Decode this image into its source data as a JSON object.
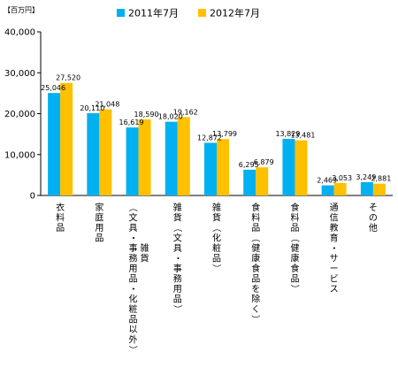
{
  "chart_data": {
    "type": "bar",
    "unit_label": "【百万円】",
    "title": "",
    "xlabel": "",
    "ylabel": "",
    "ylim": [
      0,
      40000
    ],
    "yticks": [
      0,
      10000,
      20000,
      30000,
      40000
    ],
    "ytick_labels": [
      "0",
      "10,000",
      "20,000",
      "30,000",
      "40,000"
    ],
    "grid": false,
    "legend_position": "top-center",
    "categories": [
      "衣料品",
      "家庭用品",
      "雑貨（文具・事務用品・化粧品以外）",
      "雑貨（文具・事務用品）",
      "雑貨（化粧品）",
      "食料品（健康食品を除く）",
      "食料品（健康食品）",
      "通信教育・サービス",
      "その他"
    ],
    "series": [
      {
        "name": "2011年7月",
        "color": "#00B0F0",
        "values": [
          25046,
          20110,
          16619,
          18020,
          12872,
          6295,
          13829,
          2469,
          3249
        ],
        "labels": [
          "25,046",
          "20,110",
          "16,619",
          "18,020",
          "12,872",
          "6,295",
          "13,829",
          "2,469",
          "3,249"
        ]
      },
      {
        "name": "2012年7月",
        "color": "#FFC000",
        "values": [
          27520,
          21048,
          18590,
          19162,
          13799,
          6879,
          13481,
          3053,
          2881
        ],
        "labels": [
          "27,520",
          "21,048",
          "18,590",
          "19,162",
          "13,799",
          "6,879",
          "13,481",
          "3,053",
          "2,881"
        ]
      }
    ]
  }
}
